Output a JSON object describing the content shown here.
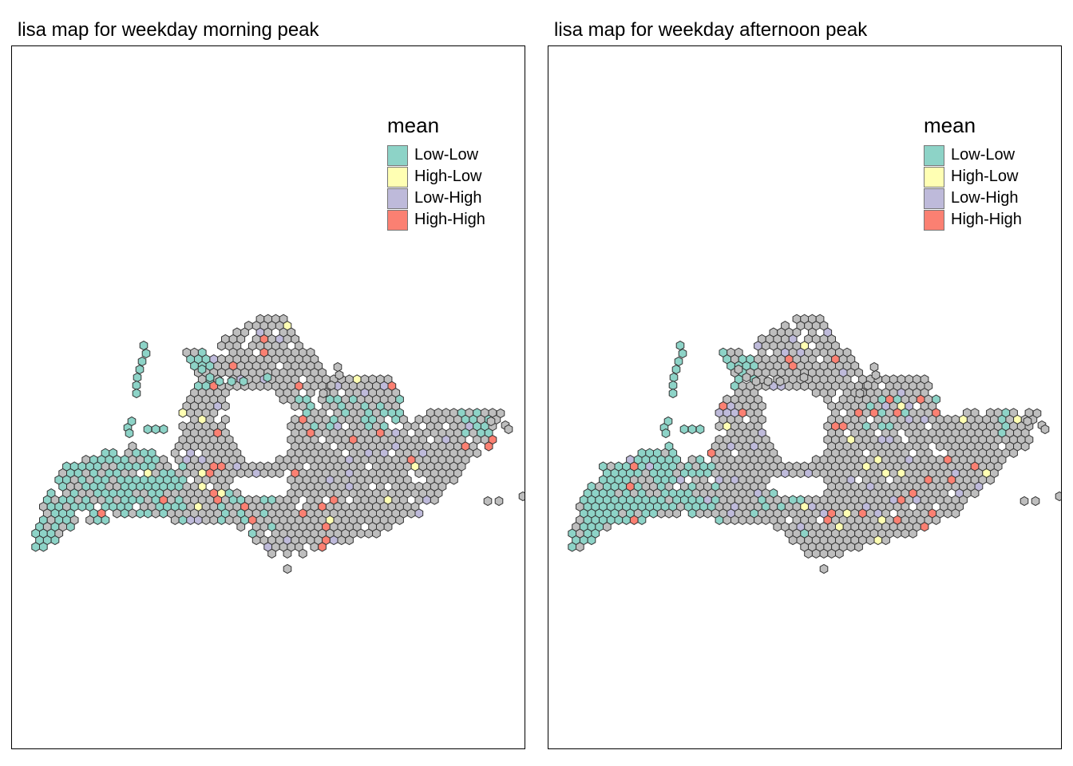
{
  "panels": [
    {
      "title": "lisa map for weekday morning peak",
      "variant": "morning",
      "legend_title": "mean"
    },
    {
      "title": "lisa map for weekday afternoon peak",
      "variant": "afternoon",
      "legend_title": "mean"
    }
  ],
  "legend_classes": [
    {
      "label": "Low-Low",
      "color": "#8DD3C7"
    },
    {
      "label": "High-Low",
      "color": "#FFFFB3"
    },
    {
      "label": "Low-High",
      "color": "#BEBADA"
    },
    {
      "label": "High-High",
      "color": "#FB8072"
    }
  ],
  "colors": {
    "insignificant_fill": "#BEBEBE",
    "hex_border": "#333333",
    "frame": "#000000"
  }
}
